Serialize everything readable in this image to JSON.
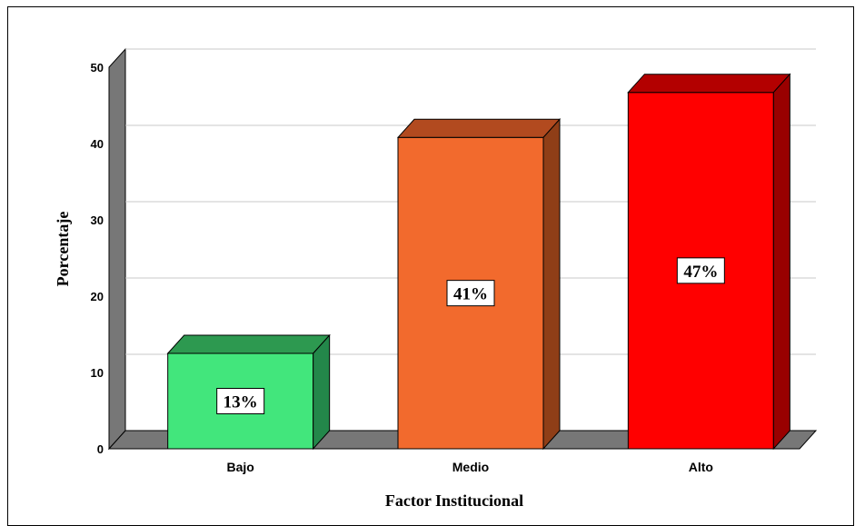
{
  "chart_data": {
    "type": "bar",
    "categories": [
      "Bajo",
      "Medio",
      "Alto"
    ],
    "values": [
      12.5,
      40.8,
      46.7
    ],
    "data_labels": [
      "13%",
      "41%",
      "47%"
    ],
    "colors": {
      "fronts": [
        "#42e67c",
        "#f26a2d",
        "#ff0000"
      ],
      "tops": [
        "#2d9950",
        "#b24a1f",
        "#b30000"
      ],
      "sides": [
        "#23874a",
        "#8f3e17",
        "#990000"
      ]
    },
    "xlabel": "Factor Institucional",
    "ylabel": "Porcentaje",
    "ylim": [
      0,
      50
    ],
    "yticks": [
      0,
      10,
      20,
      30,
      40,
      50
    ],
    "grid": true,
    "legend": "none",
    "style": "3d"
  }
}
